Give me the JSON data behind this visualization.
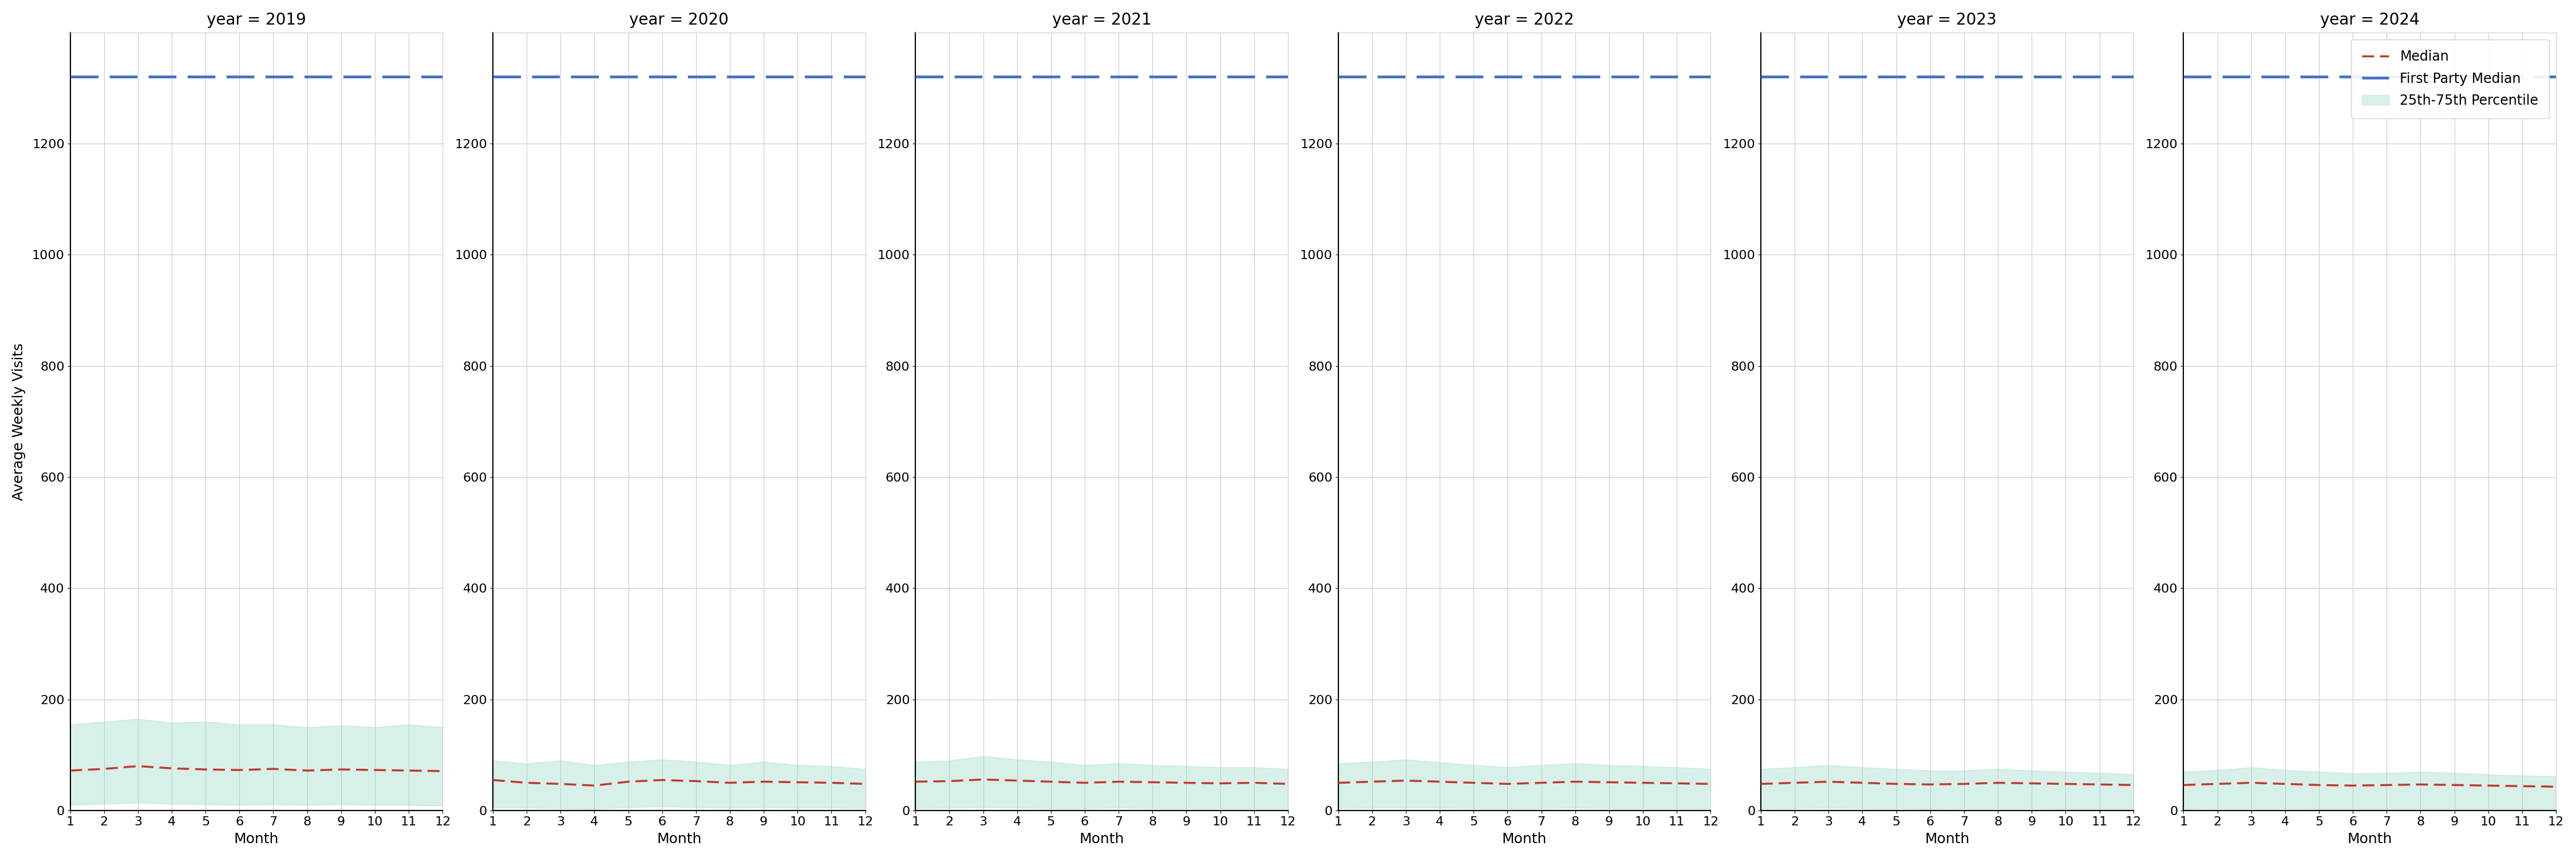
{
  "years": [
    2019,
    2020,
    2021,
    2022,
    2023,
    2024
  ],
  "months": [
    1,
    2,
    3,
    4,
    5,
    6,
    7,
    8,
    9,
    10,
    11,
    12
  ],
  "median_2019": [
    72,
    75,
    80,
    76,
    74,
    73,
    75,
    72,
    74,
    73,
    72,
    71
  ],
  "median_2020": [
    55,
    50,
    48,
    45,
    52,
    55,
    53,
    50,
    52,
    51,
    50,
    48
  ],
  "median_2021": [
    52,
    53,
    56,
    54,
    52,
    50,
    52,
    51,
    50,
    49,
    50,
    48
  ],
  "median_2022": [
    50,
    52,
    54,
    52,
    50,
    48,
    50,
    52,
    51,
    50,
    49,
    48
  ],
  "median_2023": [
    48,
    50,
    52,
    50,
    48,
    47,
    48,
    50,
    49,
    48,
    47,
    46
  ],
  "median_2024": [
    46,
    48,
    50,
    48,
    46,
    45,
    46,
    47,
    46,
    45,
    44,
    43
  ],
  "p25_2019": [
    10,
    12,
    14,
    12,
    11,
    10,
    11,
    10,
    11,
    10,
    10,
    9
  ],
  "p75_2019": [
    155,
    160,
    165,
    158,
    160,
    155,
    155,
    150,
    153,
    150,
    155,
    150
  ],
  "p25_2020": [
    5,
    5,
    4,
    3,
    6,
    7,
    6,
    5,
    6,
    5,
    5,
    4
  ],
  "p75_2020": [
    90,
    85,
    90,
    82,
    88,
    92,
    88,
    82,
    88,
    82,
    80,
    75
  ],
  "p25_2021": [
    4,
    5,
    6,
    5,
    4,
    4,
    5,
    4,
    4,
    4,
    4,
    4
  ],
  "p75_2021": [
    88,
    90,
    98,
    92,
    88,
    82,
    85,
    82,
    80,
    78,
    78,
    75
  ],
  "p25_2022": [
    4,
    5,
    5,
    5,
    4,
    4,
    4,
    5,
    4,
    4,
    4,
    3
  ],
  "p75_2022": [
    85,
    88,
    92,
    87,
    82,
    78,
    82,
    85,
    82,
    80,
    78,
    75
  ],
  "p25_2023": [
    4,
    4,
    5,
    4,
    4,
    3,
    4,
    4,
    4,
    3,
    3,
    3
  ],
  "p75_2023": [
    75,
    78,
    82,
    78,
    75,
    72,
    72,
    75,
    72,
    70,
    68,
    65
  ],
  "p25_2024": [
    3,
    4,
    4,
    4,
    3,
    3,
    3,
    3,
    3,
    3,
    3,
    3
  ],
  "p75_2024": [
    70,
    73,
    78,
    73,
    70,
    67,
    68,
    70,
    68,
    65,
    63,
    62
  ],
  "fp_median_all": 1320,
  "ylim": [
    0,
    1400
  ],
  "yticks": [
    0,
    200,
    400,
    600,
    800,
    1000,
    1200
  ],
  "color_fp_median": "#4472C4",
  "color_median": "#C0392B",
  "color_fill": "#90D4C5",
  "fill_alpha": 0.35,
  "ylabel": "Average Weekly Visits",
  "xlabel": "Month",
  "title_prefix": "year = ",
  "fp_linewidth": 3.5,
  "med_linewidth": 2.5
}
